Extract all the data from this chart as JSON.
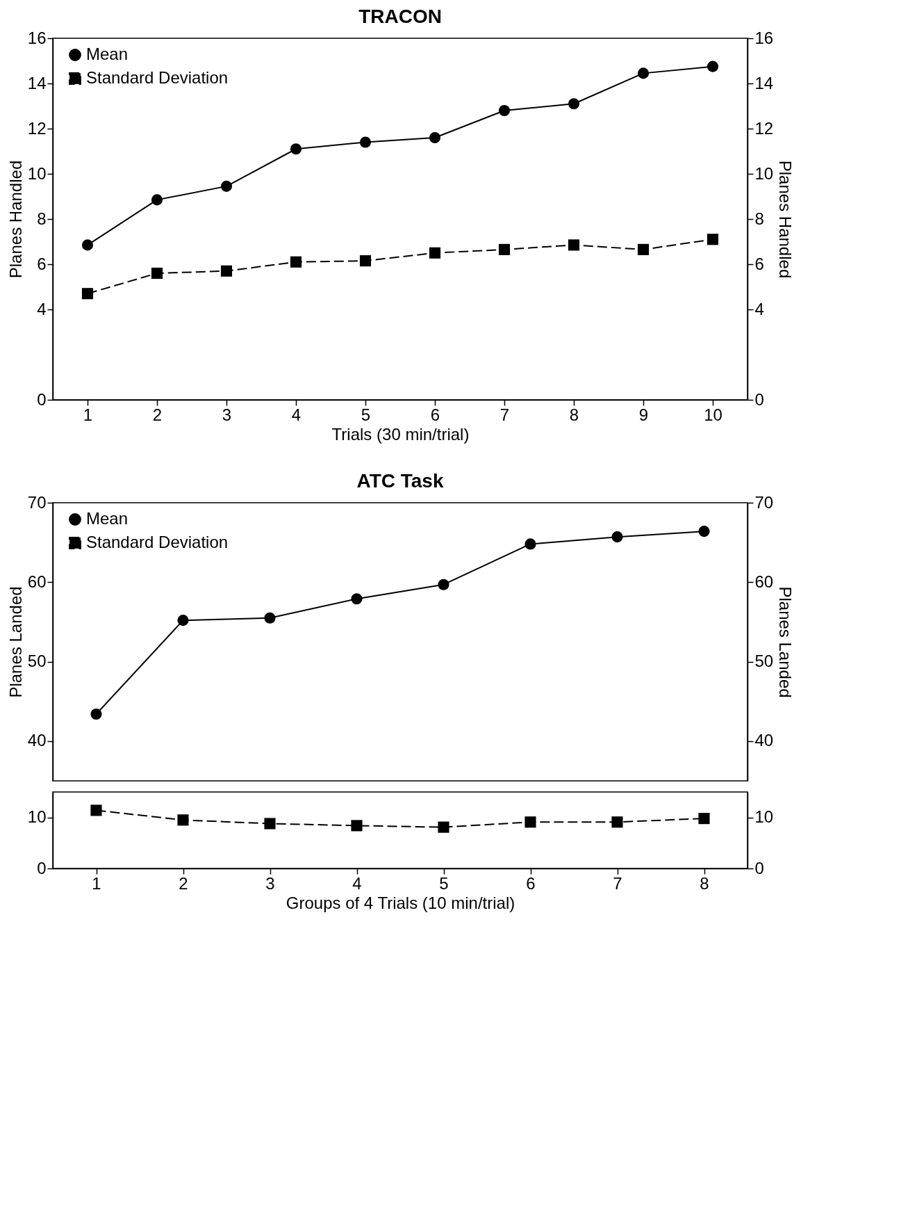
{
  "chart_data": [
    {
      "type": "line",
      "title": "TRACON",
      "xlabel": "Trials (30 min/trial)",
      "ylabel": "Planes Handled",
      "y2label": "Planes Handled",
      "categories": [
        "1",
        "2",
        "3",
        "4",
        "5",
        "6",
        "7",
        "8",
        "9",
        "10"
      ],
      "series": [
        {
          "name": "Mean",
          "color": "#000000",
          "marker": "circle",
          "line_style": "solid",
          "values": [
            6.85,
            8.85,
            9.45,
            11.1,
            11.4,
            11.6,
            12.8,
            13.1,
            14.45,
            14.75
          ]
        },
        {
          "name": "Standard Deviation",
          "color": "#000000",
          "marker": "square",
          "line_style": "dashed",
          "values": [
            4.7,
            5.6,
            5.7,
            6.1,
            6.15,
            6.5,
            6.65,
            6.85,
            6.65,
            7.1
          ]
        }
      ],
      "ylim": [
        0,
        16
      ],
      "yticks": [
        0,
        4,
        6,
        8,
        10,
        12,
        14,
        16
      ],
      "y2lim": [
        0,
        16
      ],
      "y2ticks": [
        0,
        4,
        6,
        8,
        10,
        12,
        14,
        16
      ],
      "grid": false,
      "legend": "top left"
    },
    {
      "type": "line",
      "title": "ATC Task",
      "ylabel": "Planes Landed",
      "y2label": "Planes Landed",
      "tick_labels": "y",
      "categories": [
        "1",
        "2",
        "3",
        "4",
        "5",
        "6",
        "7",
        "8"
      ],
      "series": [
        {
          "name": "Mean",
          "color": "#000000",
          "marker": "circle",
          "line_style": "solid",
          "values": [
            43.4,
            55.2,
            55.5,
            57.9,
            59.7,
            64.8,
            65.7,
            66.4
          ]
        }
      ],
      "ylim": [
        35,
        70
      ],
      "yticks": [
        40,
        50,
        60,
        70
      ],
      "y2lim": [
        35,
        70
      ],
      "y2ticks": [
        40,
        50,
        60,
        70
      ],
      "grid": false,
      "legend": "top left"
    },
    {
      "type": "line",
      "xlabel": "Groups of 4 Trials (10 min/trial)",
      "categories": [
        "1",
        "2",
        "3",
        "4",
        "5",
        "6",
        "7",
        "8"
      ],
      "series": [
        {
          "name": "Standard Deviation",
          "color": "#000000",
          "marker": "square",
          "line_style": "dashed",
          "values": [
            11.4,
            9.5,
            8.8,
            8.4,
            8.1,
            9.1,
            9.1,
            9.8
          ]
        }
      ],
      "ylim": [
        0,
        15
      ],
      "yticks": [
        0,
        10
      ],
      "y2lim": [
        0,
        15
      ],
      "y2ticks": [
        0,
        10
      ],
      "grid": false
    }
  ]
}
